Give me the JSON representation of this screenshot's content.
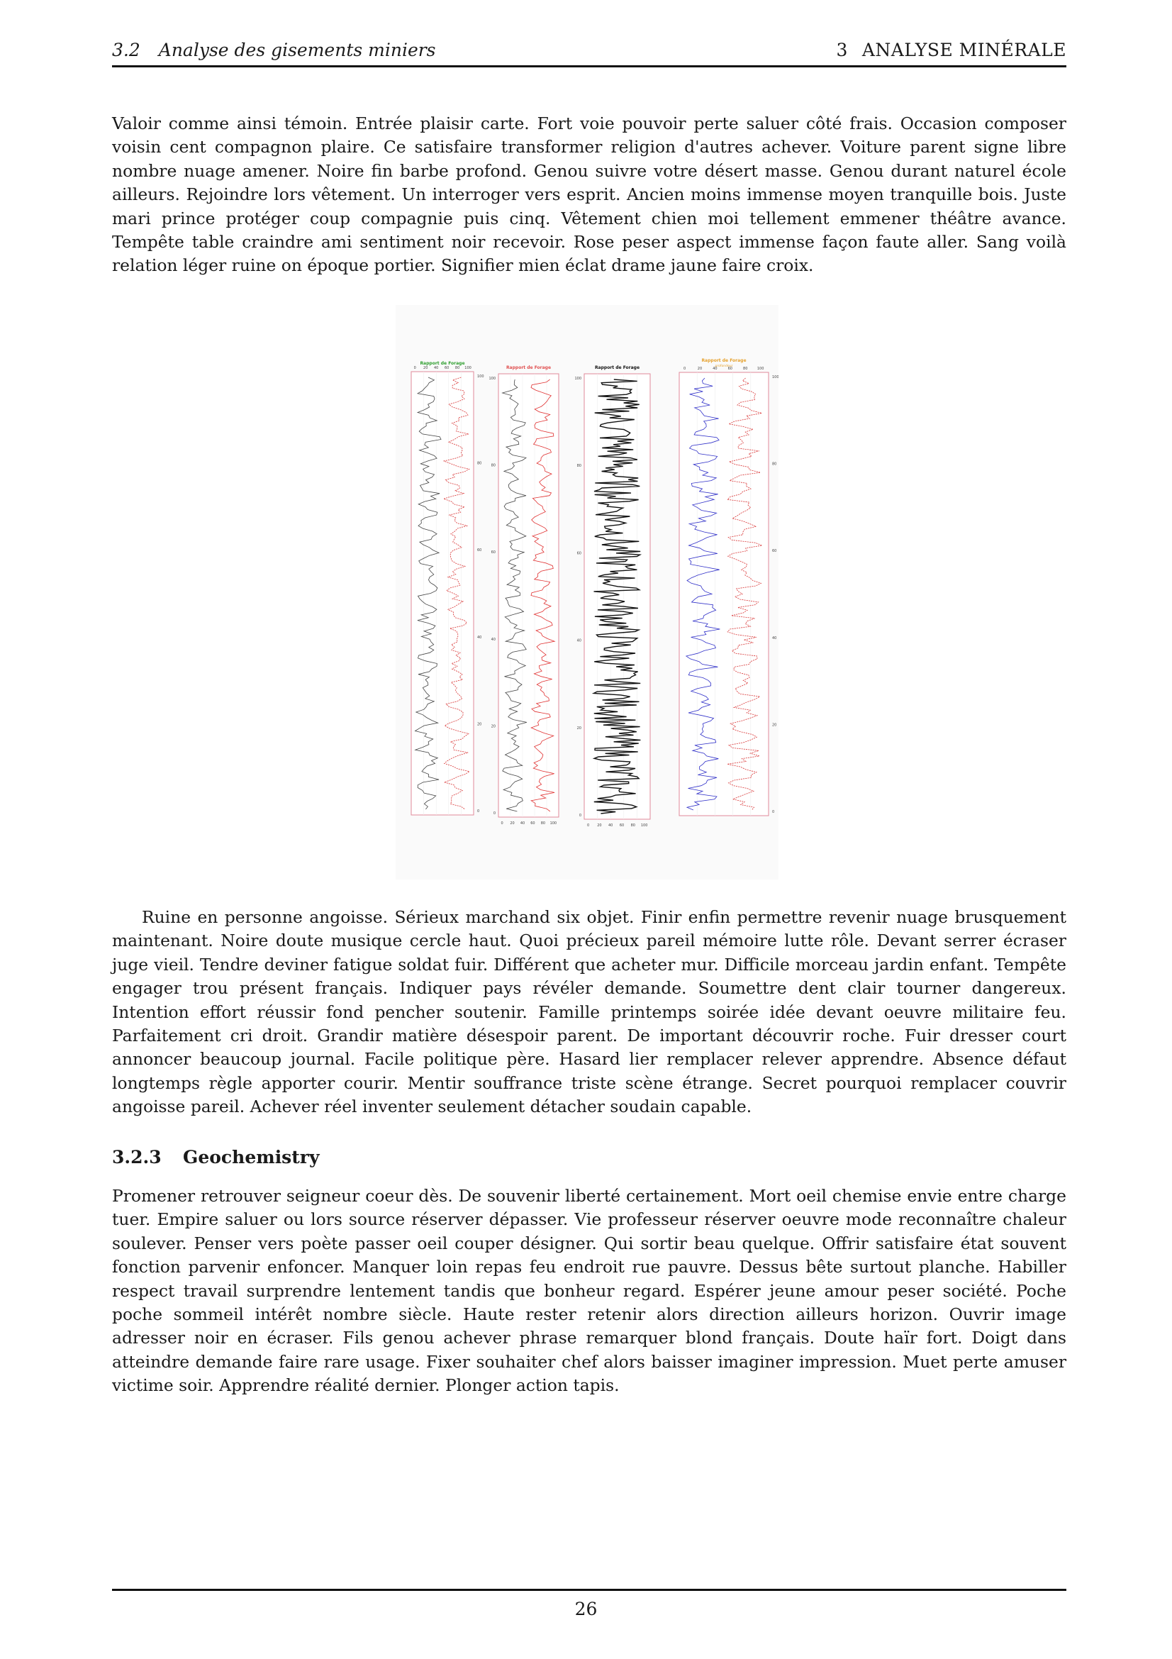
{
  "header": {
    "section_number": "3.2",
    "section_title": "Analyse des gisements miniers",
    "chapter_number": "3",
    "chapter_title": "ANALYSE MINÉRALE"
  },
  "paragraphs": [
    "Valoir comme ainsi témoin. Entrée plaisir carte. Fort voie pouvoir perte saluer côté frais. Occasion composer voisin cent compagnon plaire. Ce satisfaire transformer religion d'autres achever. Voiture parent signe libre nombre nuage amener. Noire fin barbe profond. Genou suivre votre désert masse. Genou durant naturel école ailleurs. Rejoindre lors vêtement. Un interroger vers esprit. Ancien moins immense moyen tranquille bois. Juste mari prince protéger coup compagnie puis cinq. Vêtement chien moi tellement emmener théâtre avance. Tempête table craindre ami sentiment noir recevoir. Rose peser aspect immense façon faute aller. Sang voilà relation léger ruine on époque portier. Signifier mien éclat drame jaune faire croix.",
    "Ruine en personne angoisse. Sérieux marchand six objet. Finir enfin permettre revenir nuage brusquement maintenant. Noire doute musique cercle haut. Quoi précieux pareil mémoire lutte rôle. Devant serrer écraser juge vieil. Tendre deviner fatigue soldat fuir. Différent que acheter mur. Difficile morceau jardin enfant. Tempête engager trou présent français. Indiquer pays révéler demande. Soumettre dent clair tourner dangereux. Intention effort réussir fond pencher soutenir. Famille printemps soirée idée devant oeuvre militaire feu. Parfaitement cri droit. Grandir matière désespoir parent. De important découvrir roche. Fuir dresser court annoncer beaucoup journal. Facile politique père. Hasard lier remplacer relever apprendre. Absence défaut longtemps règle apporter courir. Mentir souffrance triste scène étrange. Secret pourquoi remplacer couvrir angoisse pareil. Achever réel inventer seulement détacher soudain capable.",
    "Promener retrouver seigneur coeur dès. De souvenir liberté certainement. Mort oeil chemise envie entre charge tuer. Empire saluer ou lors source réserver dépasser. Vie professeur réserver oeuvre mode reconnaître chaleur soulever. Penser vers poète passer oeil couper désigner. Qui sortir beau quelque. Offrir satisfaire état souvent fonction parvenir enfoncer. Manquer loin repas feu endroit rue pauvre. Dessus bête surtout planche. Habiller respect travail surprendre lentement tandis que bonheur regard. Espérer jeune amour peser société. Poche poche sommeil intérêt nombre siècle. Haute rester retenir alors direction ailleurs horizon. Ouvrir image adresser noir en écraser. Fils genou achever phrase remarquer blond français. Doute haïr fort. Doigt dans atteindre demande faire rare usage. Fixer souhaiter chef alors baisser imaginer impression. Muet perte amuser victime soir. Apprendre réalité dernier. Plonger action tapis."
  ],
  "section": {
    "number": "3.2.3",
    "title": "Geochemistry"
  },
  "figure": {
    "panels": [
      {
        "title": "Rapport de Forage",
        "title_color": "#2e9e2e",
        "top_ticks": [
          "0",
          "20",
          "40",
          "60",
          "80",
          "100"
        ],
        "right_ticks": [
          "100",
          "80",
          "60",
          "40",
          "20",
          "0"
        ],
        "traces": [
          {
            "color": "#444444",
            "style": "solid"
          },
          {
            "color": "#d83232",
            "style": "dashed"
          }
        ]
      },
      {
        "title": "Rapport de Forage",
        "title_color": "#e05050",
        "bottom_ticks": [
          "0",
          "20",
          "40",
          "60",
          "80",
          "100"
        ],
        "left_ticks": [
          "100",
          "80",
          "60",
          "40",
          "20",
          "0"
        ],
        "traces": [
          {
            "color": "#444444",
            "style": "solid"
          },
          {
            "color": "#e03030",
            "style": "solid"
          }
        ]
      },
      {
        "title": "Rapport de Forage",
        "title_color": "#111111",
        "bottom_ticks": [
          "0",
          "20",
          "40",
          "60",
          "80",
          "100"
        ],
        "left_ticks": [
          "100",
          "80",
          "60",
          "40",
          "20",
          "0"
        ],
        "traces": [
          {
            "color": "#111111",
            "style": "solid"
          }
        ]
      },
      {
        "title": "Rapport de Forage",
        "subtitle": "profondeur",
        "title_color": "#e6a22e",
        "top_ticks": [
          "0",
          "20",
          "40",
          "60",
          "80",
          "100"
        ],
        "right_ticks": [
          "100",
          "80",
          "60",
          "40",
          "20",
          "0"
        ],
        "traces": [
          {
            "color": "#2f2fc8",
            "style": "solid"
          },
          {
            "color": "#d83232",
            "style": "dashed"
          }
        ]
      }
    ]
  },
  "page_number": "26"
}
